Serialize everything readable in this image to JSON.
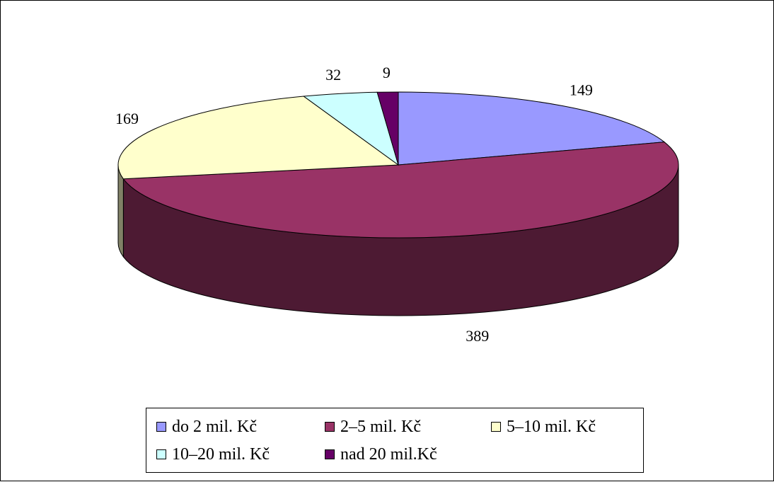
{
  "chart_data": {
    "type": "pie",
    "categories": [
      "do 2 mil. Kč",
      "2–5 mil. Kč",
      "5–10 mil. Kč",
      "10–20 mil. Kč",
      "nad 20 mil.Kč"
    ],
    "values": [
      149,
      389,
      169,
      32,
      9
    ],
    "data_labels": [
      "149",
      "389",
      "169",
      "32",
      "9"
    ],
    "colors": [
      "#9999ff",
      "#993366",
      "#ffffcc",
      "#ccffff",
      "#660066"
    ],
    "side_colors": [
      "#4c4c80",
      "#4d1a33",
      "#808066",
      "#668080",
      "#330033"
    ],
    "style": "3d",
    "legend_position": "bottom"
  },
  "legend": {
    "items": [
      {
        "label": "do 2 mil. Kč",
        "color": "#9999ff"
      },
      {
        "label": "2–5 mil. Kč",
        "color": "#993366"
      },
      {
        "label": "5–10 mil. Kč",
        "color": "#ffffcc"
      },
      {
        "label": "10–20 mil. Kč",
        "color": "#ccffff"
      },
      {
        "label": "nad 20 mil.Kč",
        "color": "#660066"
      }
    ]
  }
}
